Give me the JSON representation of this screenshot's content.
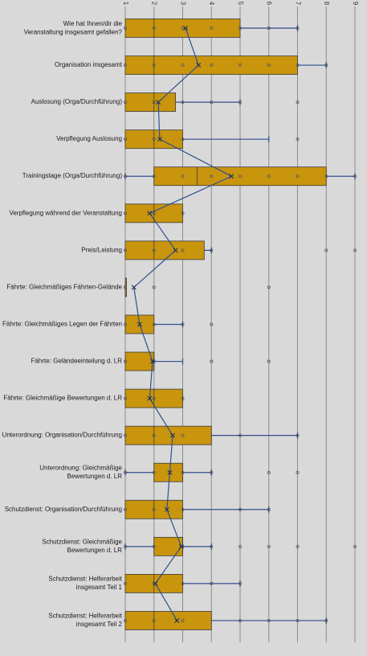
{
  "chart_data": {
    "type": "boxplot",
    "orientation": "horizontal",
    "title": "",
    "xlabel": "",
    "ylabel": "",
    "xlim": [
      1,
      9
    ],
    "x_ticks": [
      "1",
      "2",
      "3",
      "4",
      "5",
      "6",
      "7",
      "8",
      "9"
    ],
    "tick_position": "top",
    "grid": true,
    "colors": {
      "box_fill": "#c9950d",
      "box_stroke": "#3b3b3b",
      "whisker": "#2f4f8f",
      "mean_line": "#2f4f8f",
      "point": "#5a5a5a",
      "grid": "#8c8c8c",
      "background": "#d9d9d9"
    },
    "categories": [
      "Wie hat Ihnen/dir die Veranstaltung insgesamt gefallen?",
      "Organisation insgesamt",
      "Auslosung (Orga/Durchführung)",
      "Verpflegung Auslosung",
      "Trainingstage (Orga/Durchführung)",
      "Verpflegung während der Veranstaltung",
      "Preis/Leistung",
      "Fährte: Gleichmäßiges Fährten-Gelände",
      "Fährte: Gleichmäßiges Legen der Fährten",
      "Fährte: Geländeeinteilung d. LR",
      "Fährte: Gleichmäßige Bewertungen d. LR",
      "Unterordnung: Organisation/Durchführung",
      "Unterordnung: Gleichmäßige Bewertungen d. LR",
      "Schutzdienst: Organisation/Durchführung",
      "Schutzdienst: Gleichmäßige Bewertungen d. LR",
      "Schutzdienst: Helferarbeit insgesamt Teil 1",
      "Schutzdienst: Helferarbeit insgesamt Teil 2"
    ],
    "boxes": [
      {
        "whisker_low": 1,
        "q1": 1,
        "median": 2,
        "q3": 5,
        "whisker_high": 7,
        "mean": 3.1,
        "points": [
          1,
          2,
          3,
          4,
          5,
          6,
          7
        ]
      },
      {
        "whisker_low": 1,
        "q1": 1,
        "median": 2,
        "q3": 7,
        "whisker_high": 8,
        "mean": 3.55,
        "points": [
          1,
          2,
          3,
          4,
          5,
          6,
          7,
          8
        ]
      },
      {
        "whisker_low": 1,
        "q1": 1,
        "median": 2,
        "q3": 2.75,
        "whisker_high": 5,
        "mean": 2.15,
        "points": [
          1,
          2,
          3,
          4,
          5,
          7
        ]
      },
      {
        "whisker_low": 1,
        "q1": 1,
        "median": 2,
        "q3": 3,
        "whisker_high": 6,
        "mean": 2.2,
        "points": [
          1,
          2,
          3,
          7
        ]
      },
      {
        "whisker_low": 1,
        "q1": 2,
        "median": 3.5,
        "q3": 8,
        "whisker_high": 9,
        "mean": 4.7,
        "points": [
          1,
          2,
          3,
          4,
          5,
          6,
          7,
          8,
          9
        ]
      },
      {
        "whisker_low": 1,
        "q1": 1,
        "median": 2,
        "q3": 3,
        "whisker_high": 3,
        "mean": 1.85,
        "points": [
          1,
          2,
          3
        ]
      },
      {
        "whisker_low": 1,
        "q1": 1,
        "median": 2,
        "q3": 3.75,
        "whisker_high": 4,
        "mean": 2.75,
        "points": [
          1,
          2,
          3,
          4,
          8,
          9
        ]
      },
      {
        "whisker_low": 1,
        "q1": 1,
        "median": 1,
        "q3": 1,
        "whisker_high": 1,
        "mean": 1.3,
        "points": [
          1,
          2,
          6
        ]
      },
      {
        "whisker_low": 1,
        "q1": 1,
        "median": 1,
        "q3": 2,
        "whisker_high": 3,
        "mean": 1.5,
        "points": [
          1,
          2,
          3,
          4
        ]
      },
      {
        "whisker_low": 1,
        "q1": 1,
        "median": 2,
        "q3": 2,
        "whisker_high": 3,
        "mean": 1.95,
        "points": [
          1,
          2,
          4,
          6
        ]
      },
      {
        "whisker_low": 1,
        "q1": 1,
        "median": 2,
        "q3": 3,
        "whisker_high": 3,
        "mean": 1.85,
        "points": [
          1,
          2,
          3
        ]
      },
      {
        "whisker_low": 1,
        "q1": 1,
        "median": 2,
        "q3": 4,
        "whisker_high": 7,
        "mean": 2.65,
        "points": [
          1,
          2,
          3,
          5,
          7
        ]
      },
      {
        "whisker_low": 1,
        "q1": 2,
        "median": 3,
        "q3": 3,
        "whisker_high": 4,
        "mean": 2.55,
        "points": [
          1,
          2,
          3,
          4,
          6,
          7
        ]
      },
      {
        "whisker_low": 1,
        "q1": 1,
        "median": 2,
        "q3": 3,
        "whisker_high": 6,
        "mean": 2.45,
        "points": [
          1,
          2,
          3,
          5,
          6
        ]
      },
      {
        "whisker_low": 1,
        "q1": 2,
        "median": 3,
        "q3": 3,
        "whisker_high": 4,
        "mean": 2.95,
        "points": [
          1,
          2,
          3,
          4,
          5,
          6,
          7,
          9
        ]
      },
      {
        "whisker_low": 1,
        "q1": 1,
        "median": 2,
        "q3": 3,
        "whisker_high": 5,
        "mean": 2.05,
        "points": [
          1,
          2,
          3,
          4,
          5
        ]
      },
      {
        "whisker_low": 1,
        "q1": 1,
        "median": 2,
        "q3": 4,
        "whisker_high": 8,
        "mean": 2.8,
        "points": [
          1,
          2,
          3,
          5,
          6,
          7,
          8
        ]
      }
    ]
  }
}
